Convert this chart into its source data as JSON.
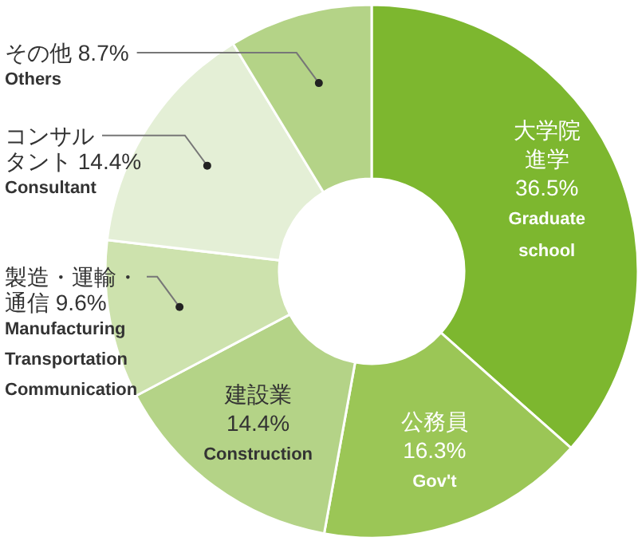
{
  "chart_data": {
    "type": "donut",
    "categories": [
      "大学院進学",
      "公務員",
      "建設業",
      "製造・運輸・通信",
      "コンサルタント",
      "その他"
    ],
    "values": [
      36.5,
      16.3,
      14.4,
      9.6,
      14.4,
      8.7
    ],
    "colors": [
      "#7db72f",
      "#9bc656",
      "#b4d387",
      "#cde2ad",
      "#e4efd6",
      "#b4d387"
    ],
    "annotations": [
      "Graduate\nschool",
      "Gov't",
      "Construction",
      "Manufacturing\nTransportation\nCommunication",
      "Consultant",
      "Others"
    ],
    "value_labels": [
      "36.5%",
      "16.3%",
      "14.4%",
      "9.6%",
      "14.4%",
      "8.7%"
    ]
  }
}
